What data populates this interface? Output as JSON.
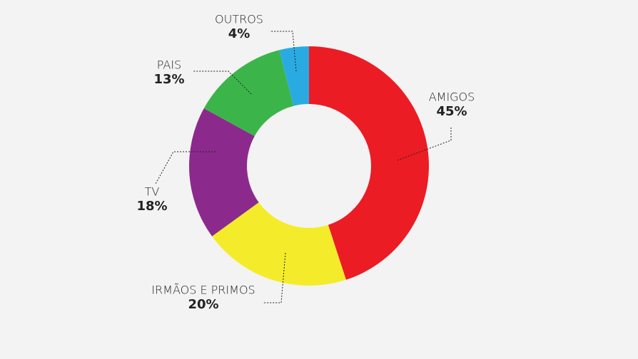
{
  "chart_data": {
    "type": "donut",
    "categories": [
      "AMIGOS",
      "IRMÃOS E PRIMOS",
      "TV",
      "PAIS",
      "OUTROS"
    ],
    "values": [
      45,
      20,
      18,
      13,
      4
    ],
    "value_labels": [
      "45%",
      "20%",
      "18%",
      "13%",
      "4%"
    ],
    "colors": [
      "#ec1c24",
      "#f4ec2a",
      "#8b2a8c",
      "#3bb54a",
      "#29abe2"
    ]
  }
}
